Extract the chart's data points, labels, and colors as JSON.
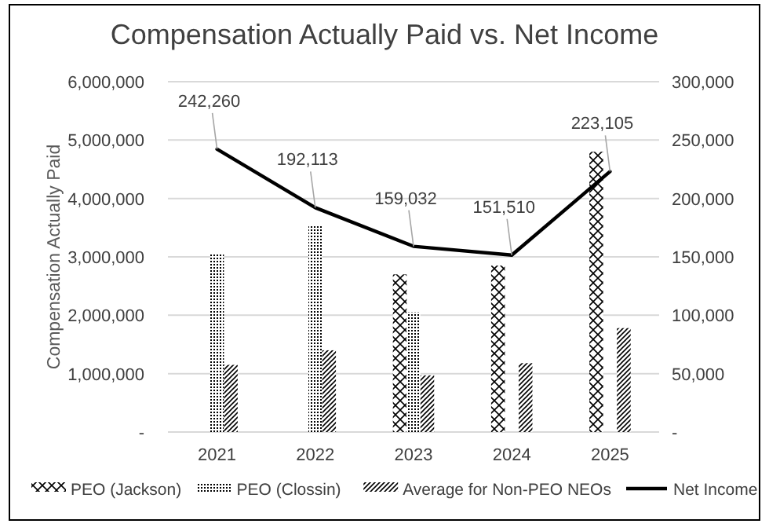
{
  "chart_data": {
    "type": "bar",
    "title": "Compensation Actually Paid vs. Net Income",
    "ylabel": "Compensation Actually Paid",
    "categories": [
      "2021",
      "2022",
      "2023",
      "2024",
      "2025"
    ],
    "series": [
      {
        "name": "PEO (Jackson)",
        "color": "#000000",
        "values": [
          null,
          null,
          2700000,
          2850000,
          4800000
        ]
      },
      {
        "name": "PEO (Clossin)",
        "color": "#000000",
        "values": [
          3050000,
          3550000,
          2050000,
          null,
          null
        ]
      },
      {
        "name": "Average for Non-PEO NEOs",
        "color": "#000000",
        "values": [
          1150000,
          1400000,
          970000,
          1180000,
          1780000
        ]
      },
      {
        "name": "Net Income",
        "type": "line",
        "axis": "y2",
        "color": "#000000",
        "values": [
          242260,
          192113,
          159032,
          151510,
          223105
        ],
        "value_labels": [
          "242,260",
          "192,113",
          "159,032",
          "151,510",
          "223,105"
        ]
      }
    ],
    "ylim": [
      0,
      6000000
    ],
    "yticks": [
      {
        "value": 0,
        "label": "-"
      },
      {
        "value": 1000000,
        "label": "1,000,000"
      },
      {
        "value": 2000000,
        "label": "2,000,000"
      },
      {
        "value": 3000000,
        "label": "3,000,000"
      },
      {
        "value": 4000000,
        "label": "4,000,000"
      },
      {
        "value": 5000000,
        "label": "5,000,000"
      },
      {
        "value": 6000000,
        "label": "6,000,000"
      }
    ],
    "y2lim": [
      0,
      300000
    ],
    "y2ticks": [
      {
        "value": 0,
        "label": "-"
      },
      {
        "value": 50000,
        "label": "50,000"
      },
      {
        "value": 100000,
        "label": "100,000"
      },
      {
        "value": 150000,
        "label": "150,000"
      },
      {
        "value": 200000,
        "label": "200,000"
      },
      {
        "value": 250000,
        "label": "250,000"
      },
      {
        "value": 300000,
        "label": "300,000"
      }
    ],
    "grid": "y",
    "legend": "bottom",
    "marker": "none",
    "line_style": "solid"
  }
}
